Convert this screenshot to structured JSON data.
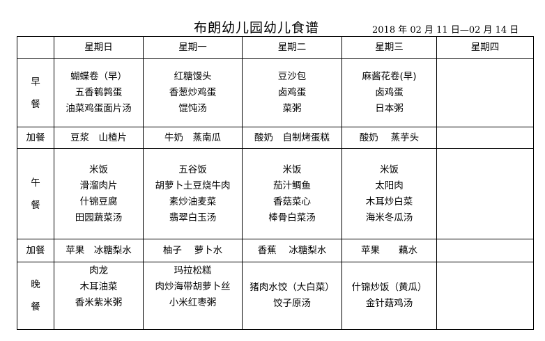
{
  "title": "布朗幼儿园幼儿食谱",
  "date_range": "2018 年 02 月 11 日—02 月 14 日",
  "days": [
    "星期日",
    "星期一",
    "星期二",
    "星期三",
    "星期四"
  ],
  "meals": [
    {
      "label": "早餐",
      "type": "main",
      "cells": [
        [
          "蝴蝶卷（早）",
          "五香鹌鹑蛋",
          "油菜鸡蛋面片汤"
        ],
        [
          "红糖馒头",
          "香葱炒鸡蛋",
          "馄饨汤"
        ],
        [
          "豆沙包",
          "卤鸡蛋",
          "菜粥"
        ],
        [
          "麻酱花卷(早)",
          "卤鸡蛋",
          "日本粥"
        ],
        []
      ]
    },
    {
      "label": "加餐",
      "type": "snack",
      "cells": [
        [
          "豆浆　山楂片"
        ],
        [
          "牛奶　蒸南瓜"
        ],
        [
          "酸奶　自制烤蛋糕"
        ],
        [
          "酸奶　 蒸芋头"
        ],
        []
      ]
    },
    {
      "label": "午餐",
      "type": "main",
      "cells": [
        [
          "米饭",
          "滑溜肉片",
          "什锦豆腐",
          "田园蔬菜汤"
        ],
        [
          "五谷饭",
          "胡萝卜土豆烧牛肉",
          "素炒油麦菜",
          "翡翠白玉汤"
        ],
        [
          "米饭",
          "茄汁鲷鱼",
          "香菇菜心",
          "棒骨白菜汤"
        ],
        [
          "米饭",
          "太阳肉",
          "木耳炒白菜",
          "海米冬瓜汤"
        ],
        []
      ]
    },
    {
      "label": "加餐",
      "type": "snack",
      "cells": [
        [
          "苹果　冰糖梨水"
        ],
        [
          "柚子　 萝卜水"
        ],
        [
          "香蕉　 冰糖梨水"
        ],
        [
          "苹果　　藕水"
        ],
        []
      ]
    },
    {
      "label": "晚餐",
      "type": "main",
      "cells": [
        [
          "肉龙",
          "木耳油菜",
          "香米紫米粥"
        ],
        [
          "玛拉松糕",
          "肉炒海带胡萝卜丝",
          "小米红枣粥"
        ],
        [
          "猪肉水饺（大白菜）",
          "饺子原汤"
        ],
        [
          "什锦炒饭（黄瓜）",
          "金针菇鸡汤"
        ],
        []
      ]
    }
  ]
}
